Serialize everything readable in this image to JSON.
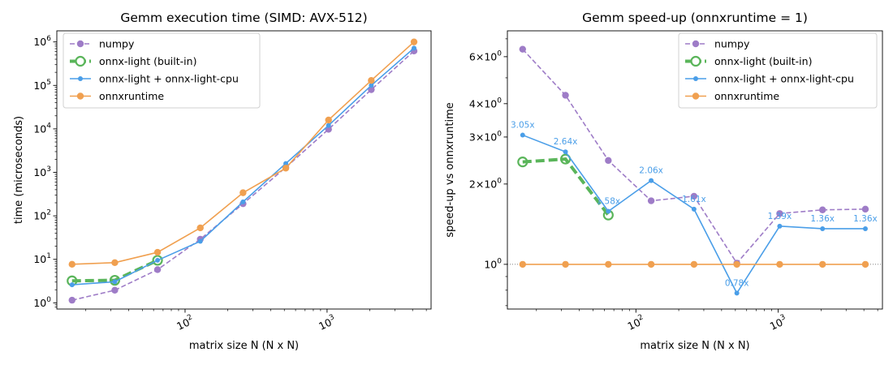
{
  "chart_data": [
    {
      "type": "line",
      "title": "Gemm execution time (SIMD: AVX-512)",
      "xlabel": "matrix size N (N x N)",
      "ylabel": "time (microseconds)",
      "xscale": "log",
      "yscale": "log",
      "xlim": [
        12.5,
        5400
      ],
      "ylim": [
        0.72,
        1800000
      ],
      "x_ticks": [
        {
          "value": 100,
          "base": "10",
          "exp": "2"
        },
        {
          "value": 1000,
          "base": "10",
          "exp": "3"
        }
      ],
      "y_ticks": [
        {
          "value": 1,
          "base": "10",
          "exp": "0"
        },
        {
          "value": 10,
          "base": "10",
          "exp": "1"
        },
        {
          "value": 100,
          "base": "10",
          "exp": "2"
        },
        {
          "value": 1000,
          "base": "10",
          "exp": "3"
        },
        {
          "value": 10000,
          "base": "10",
          "exp": "4"
        },
        {
          "value": 100000,
          "base": "10",
          "exp": "5"
        },
        {
          "value": 1000000,
          "base": "10",
          "exp": "6"
        }
      ],
      "legend_position": "top-left",
      "series": [
        {
          "name": "numpy",
          "color": "#9e7cc7",
          "style": "dashed-dot",
          "x": [
            16,
            32,
            64,
            128,
            256,
            512,
            1024,
            2048,
            4096
          ],
          "y": [
            1.15,
            1.95,
            5.8,
            29,
            190,
            1300,
            9800,
            80000,
            620000
          ]
        },
        {
          "name": "onnx-light (built-in)",
          "color": "#5ab55a",
          "style": "thick-dashed-circle",
          "x": [
            16,
            32,
            64
          ],
          "y": [
            3.2,
            3.3,
            9.5
          ]
        },
        {
          "name": "onnx-light + onnx-light-cpu",
          "color": "#4a9ee8",
          "style": "solid-dot",
          "x": [
            16,
            32,
            64,
            128,
            256,
            512,
            1024,
            2048,
            4096
          ],
          "y": [
            2.6,
            3.05,
            9.5,
            26,
            210,
            1600,
            12000,
            100000,
            720000
          ]
        },
        {
          "name": "onnxruntime",
          "color": "#f0a050",
          "style": "solid-dot",
          "x": [
            16,
            32,
            64,
            128,
            256,
            512,
            1024,
            2048,
            4096
          ],
          "y": [
            7.7,
            8.4,
            14.5,
            53,
            340,
            1250,
            16000,
            130000,
            1000000
          ]
        }
      ]
    },
    {
      "type": "line",
      "title": "Gemm speed-up (onnxruntime = 1)",
      "xlabel": "matrix size N (N x N)",
      "ylabel": "speed-up vs onnxruntime",
      "xscale": "log",
      "yscale": "log",
      "xlim": [
        12.5,
        5400
      ],
      "ylim": [
        0.68,
        7.5
      ],
      "x_ticks": [
        {
          "value": 100,
          "base": "10",
          "exp": "2"
        },
        {
          "value": 1000,
          "base": "10",
          "exp": "3"
        }
      ],
      "y_ticks": [
        {
          "value": 1,
          "base": "10",
          "exp": "0",
          "mult": ""
        },
        {
          "value": 2,
          "base": "10",
          "exp": "0",
          "mult": "2×"
        },
        {
          "value": 3,
          "base": "10",
          "exp": "0",
          "mult": "3×"
        },
        {
          "value": 4,
          "base": "10",
          "exp": "0",
          "mult": "4×"
        },
        {
          "value": 6,
          "base": "10",
          "exp": "0",
          "mult": "6×"
        }
      ],
      "reference_line": 1,
      "legend_position": "top-right",
      "series": [
        {
          "name": "numpy",
          "color": "#9e7cc7",
          "style": "dashed-dot",
          "x": [
            16,
            32,
            64,
            128,
            256,
            512,
            1024,
            2048,
            4096
          ],
          "y": [
            6.4,
            4.3,
            2.45,
            1.73,
            1.8,
            1.01,
            1.55,
            1.6,
            1.61
          ]
        },
        {
          "name": "onnx-light (built-in)",
          "color": "#5ab55a",
          "style": "thick-dashed-circle",
          "x": [
            16,
            32,
            64
          ],
          "y": [
            2.42,
            2.48,
            1.53
          ]
        },
        {
          "name": "onnx-light + onnx-light-cpu",
          "color": "#4a9ee8",
          "style": "solid-dot",
          "x": [
            16,
            32,
            64,
            128,
            256,
            512,
            1024,
            2048,
            4096
          ],
          "y": [
            3.05,
            2.64,
            1.58,
            2.06,
            1.61,
            0.78,
            1.39,
            1.36,
            1.36
          ],
          "labels": [
            "3.05x",
            "2.64x",
            "1.58x",
            "2.06x",
            "1.61x",
            "0.78x",
            "1.39x",
            "1.36x",
            "1.36x"
          ]
        },
        {
          "name": "onnxruntime",
          "color": "#f0a050",
          "style": "solid-dot",
          "x": [
            16,
            32,
            64,
            128,
            256,
            512,
            1024,
            2048,
            4096
          ],
          "y": [
            1,
            1,
            1,
            1,
            1,
            1,
            1,
            1,
            1
          ]
        }
      ]
    }
  ]
}
